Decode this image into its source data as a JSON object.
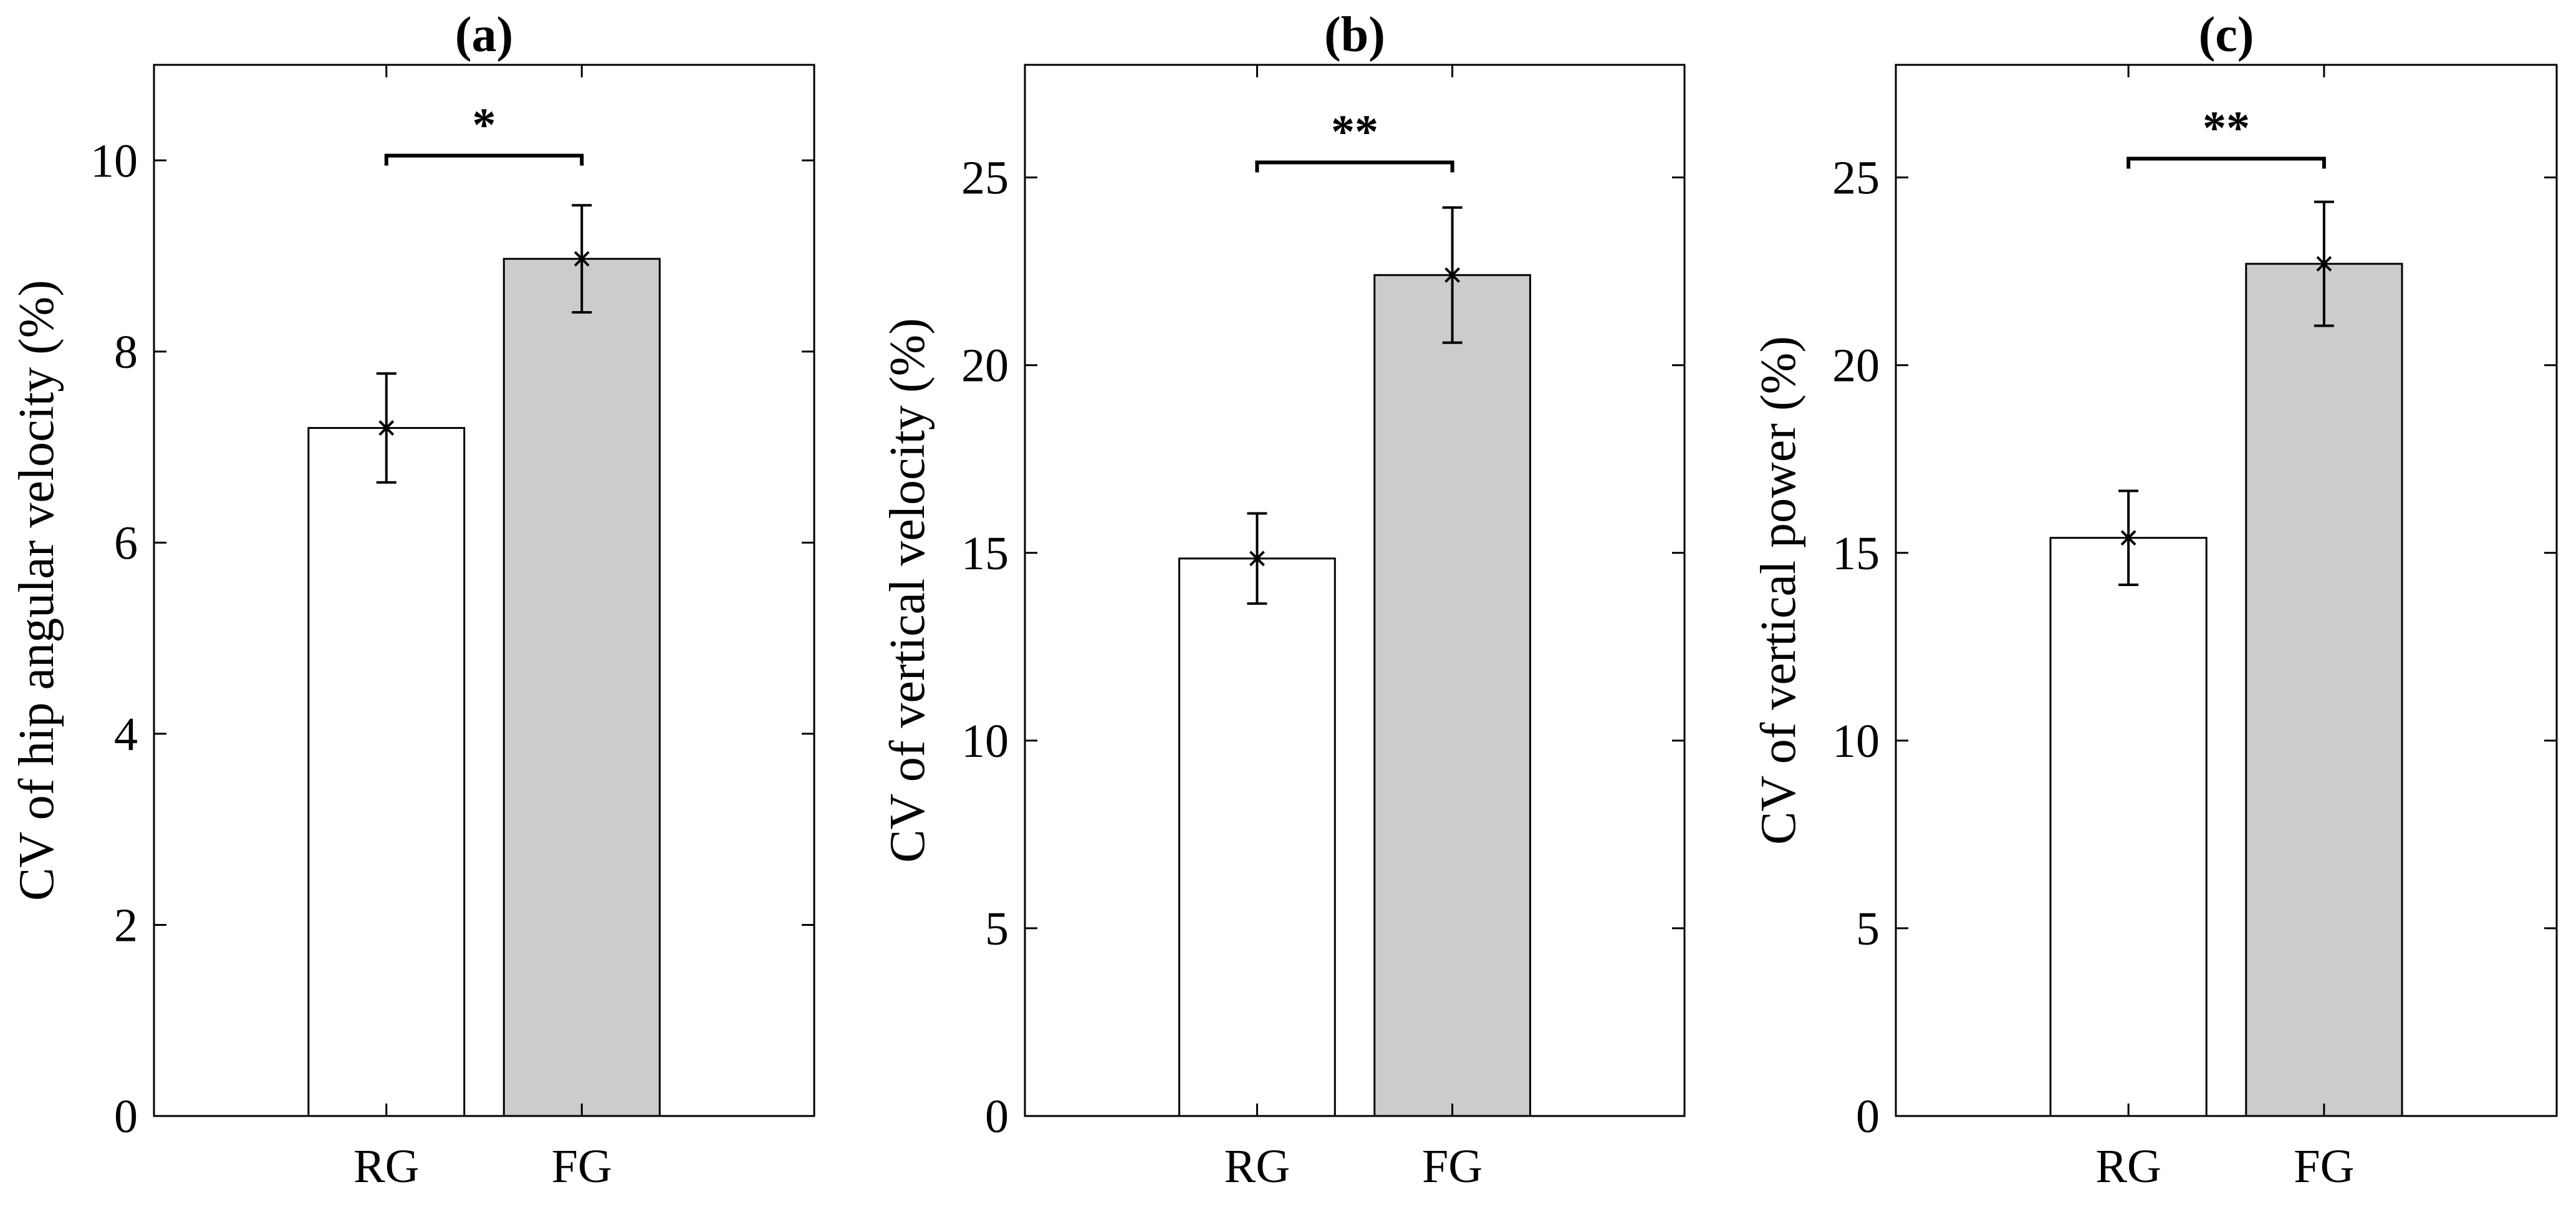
{
  "figure": {
    "background": "#ffffff"
  },
  "colors": {
    "rg_fill": "#ffffff",
    "fg_fill": "#cccccc",
    "stroke": "#000000"
  },
  "chart_data": [
    {
      "type": "bar",
      "title": "(a)",
      "xlabel": "",
      "ylabel": "CV of hip angular velocity (%)",
      "categories": [
        "RG",
        "FG"
      ],
      "values": [
        7.2,
        8.97
      ],
      "errors": [
        0.57,
        0.56
      ],
      "ylim": [
        0,
        11
      ],
      "yticks": [
        0,
        2,
        4,
        6,
        8,
        10
      ],
      "significance": {
        "label": "*",
        "y": 10.05
      }
    },
    {
      "type": "bar",
      "title": "(b)",
      "xlabel": "",
      "ylabel": "CV of vertical velocity (%)",
      "categories": [
        "RG",
        "FG"
      ],
      "values": [
        14.85,
        22.4
      ],
      "errors": [
        1.2,
        1.8
      ],
      "ylim": [
        0,
        28
      ],
      "yticks": [
        0,
        5,
        10,
        15,
        20,
        25
      ],
      "significance": {
        "label": "**",
        "y": 25.4
      }
    },
    {
      "type": "bar",
      "title": "(c)",
      "xlabel": "",
      "ylabel": "CV of vertical power (%)",
      "categories": [
        "RG",
        "FG"
      ],
      "values": [
        15.4,
        22.7
      ],
      "errors": [
        1.25,
        1.65
      ],
      "ylim": [
        0,
        28
      ],
      "yticks": [
        0,
        5,
        10,
        15,
        20,
        25
      ],
      "significance": {
        "label": "**",
        "y": 25.5
      }
    }
  ]
}
